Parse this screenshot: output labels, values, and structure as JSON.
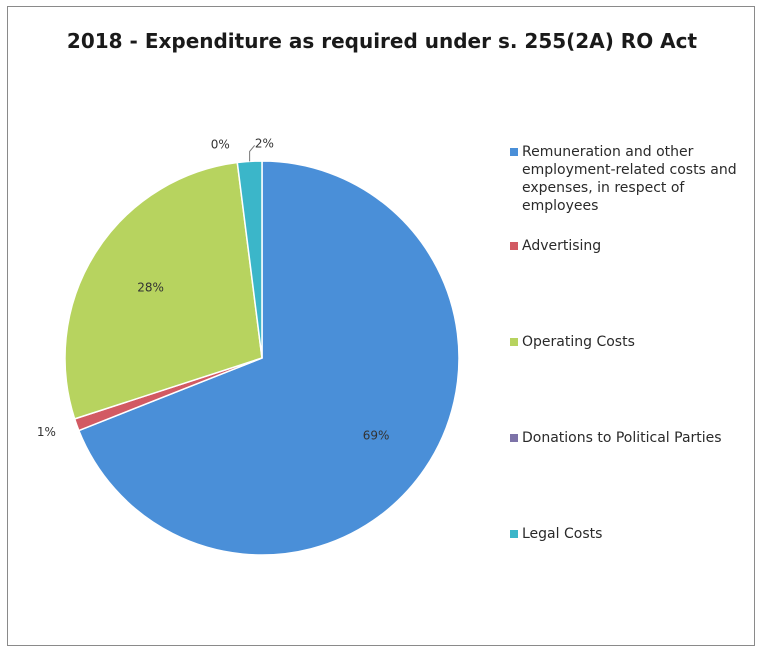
{
  "chart_data": {
    "type": "pie",
    "title": "2018 - Expenditure as required under s. 255(2A) RO Act",
    "slices": [
      {
        "label": "Remuneration and other employment-related costs and expenses, in respect of employees",
        "value": 69,
        "display": "69%",
        "color": "#4a8fd8"
      },
      {
        "label": "Advertising",
        "value": 1,
        "display": "1%",
        "color": "#d25a63"
      },
      {
        "label": "Operating Costs",
        "value": 28,
        "display": "28%",
        "color": "#b7d35f"
      },
      {
        "label": "Donations to Political Parties",
        "value": 0,
        "display": "0%",
        "color": "#7d73a8"
      },
      {
        "label": "Legal Costs",
        "value": 2,
        "display": "2%",
        "color": "#3bb6c9"
      }
    ],
    "legend_position": "right"
  }
}
